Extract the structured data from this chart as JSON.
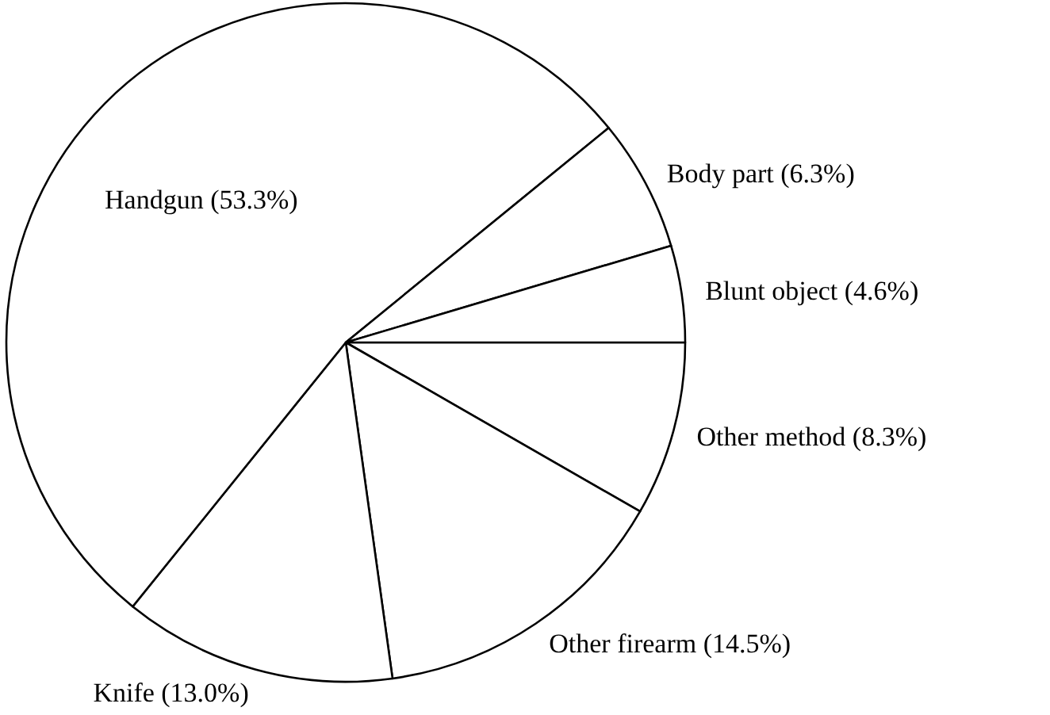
{
  "chart_data": {
    "type": "pie",
    "categories": [
      "Other method",
      "Other firearm",
      "Knife",
      "Handgun",
      "Body part",
      "Blunt object"
    ],
    "values": [
      8.3,
      14.5,
      13.0,
      53.3,
      6.3,
      4.6
    ],
    "value_labels": [
      "(8.3%)",
      "(14.5%)",
      "(13.0%)",
      "(53.3%)",
      "(6.3%)",
      "(4.6%)"
    ],
    "colors": [
      "#ffffff",
      "#ffffff",
      "#ffffff",
      "#ffffff",
      "#ffffff",
      "#ffffff"
    ]
  }
}
